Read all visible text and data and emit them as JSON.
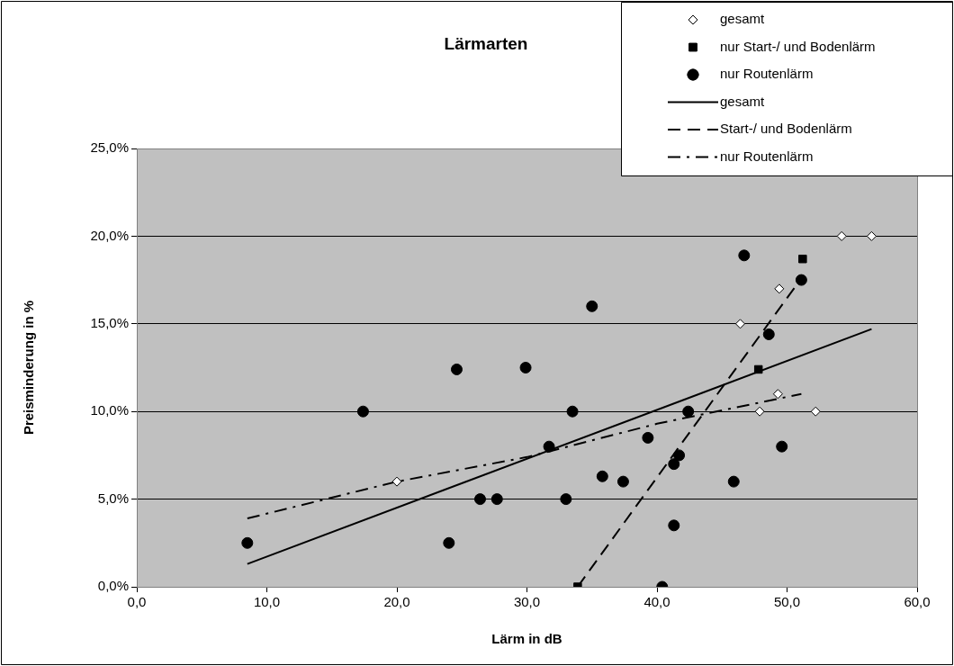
{
  "chart_data": {
    "type": "scatter",
    "title": "Lärmarten",
    "xlabel": "Lärm in dB",
    "ylabel": "Preisminderung in %",
    "xlim": [
      0,
      60
    ],
    "xticks": [
      {
        "value": 0,
        "label": "0,0"
      },
      {
        "value": 10,
        "label": "10,0"
      },
      {
        "value": 20,
        "label": "20,0"
      },
      {
        "value": 30,
        "label": "30,0"
      },
      {
        "value": 40,
        "label": "40,0"
      },
      {
        "value": 50,
        "label": "50,0"
      },
      {
        "value": 60,
        "label": "60,0"
      }
    ],
    "ylim": [
      0,
      25
    ],
    "yticks": [
      {
        "value": 0,
        "label": "0,0%"
      },
      {
        "value": 5,
        "label": "5,0%"
      },
      {
        "value": 10,
        "label": "10,0%"
      },
      {
        "value": 15,
        "label": "15,0%"
      },
      {
        "value": 20,
        "label": "20,0%"
      },
      {
        "value": 25,
        "label": "25,0%"
      }
    ],
    "grid": "y",
    "legend": "top right",
    "series": [
      {
        "name": "gesamt",
        "marker": "diamond",
        "color": "#ffffff",
        "x": [
          20.0,
          46.4,
          49.4,
          54.2,
          56.5,
          49.3,
          47.9,
          52.2
        ],
        "values": [
          6.0,
          15.0,
          17.0,
          20.0,
          20.0,
          11.0,
          10.0,
          10.0
        ]
      },
      {
        "name": "nur Start-/ und Bodenlärm",
        "marker": "square",
        "color": "#000000",
        "x": [
          33.9,
          47.8,
          51.2
        ],
        "values": [
          0.0,
          12.4,
          18.7
        ]
      },
      {
        "name": "nur Routenlärm",
        "marker": "circle",
        "color": "#000000",
        "x": [
          8.5,
          17.4,
          24.0,
          24.6,
          26.4,
          27.7,
          29.9,
          31.7,
          33.0,
          33.5,
          35.0,
          35.8,
          37.4,
          39.3,
          40.4,
          41.3,
          41.3,
          41.7,
          42.4,
          45.9,
          46.7,
          48.6,
          49.6,
          51.1
        ],
        "values": [
          2.5,
          10.0,
          2.5,
          12.4,
          5.0,
          5.0,
          12.5,
          8.0,
          5.0,
          10.0,
          16.0,
          6.3,
          6.0,
          8.5,
          0.0,
          7.0,
          3.5,
          7.5,
          10.0,
          6.0,
          18.9,
          14.4,
          8.0,
          17.5
        ]
      },
      {
        "name": "gesamt",
        "type": "line",
        "marker": "none",
        "line_style": "solid",
        "color": "#000000",
        "x": [
          8.5,
          56.5
        ],
        "values": [
          1.3,
          14.7
        ]
      },
      {
        "name": "Start-/ und Bodenlärm",
        "type": "line",
        "marker": "none",
        "line_style": "dashed",
        "color": "#000000",
        "x": [
          33.9,
          51.2
        ],
        "values": [
          0.0,
          17.7
        ]
      },
      {
        "name": "nur Routenlärm",
        "type": "line",
        "marker": "none",
        "line_style": "dashdot",
        "color": "#000000",
        "x": [
          8.5,
          20.0,
          30.0,
          40.0,
          51.1
        ],
        "values": [
          3.9,
          6.0,
          7.4,
          9.3,
          11.0
        ]
      }
    ]
  }
}
